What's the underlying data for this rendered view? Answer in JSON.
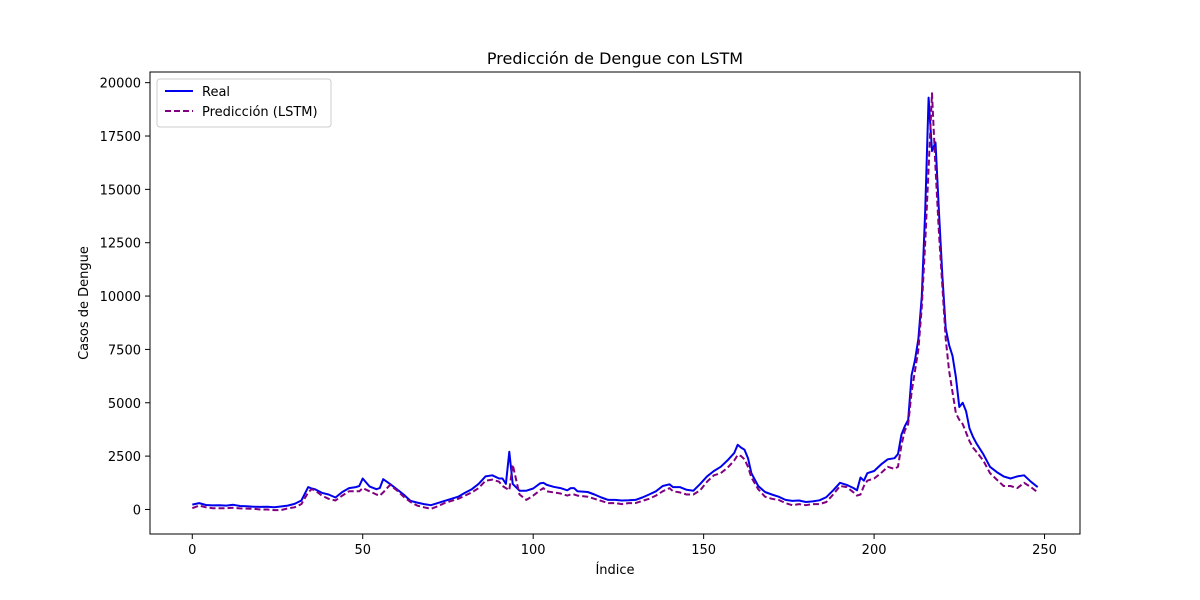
{
  "chart_data": {
    "type": "line",
    "title": "Predicción de Dengue con LSTM",
    "xlabel": "Índice",
    "ylabel": "Casos de Dengue",
    "xlim": [
      -12.4,
      260.4
    ],
    "ylim": [
      -1150,
      20500
    ],
    "xticks": [
      0,
      50,
      100,
      150,
      200,
      250
    ],
    "yticks": [
      0,
      2500,
      5000,
      7500,
      10000,
      12500,
      15000,
      17500,
      20000
    ],
    "grid": false,
    "legend_position": "top-left",
    "series": [
      {
        "name": "Real",
        "color": "#0000ee",
        "style": "solid",
        "points": [
          [
            0,
            230
          ],
          [
            2,
            300
          ],
          [
            4,
            210
          ],
          [
            6,
            190
          ],
          [
            8,
            200
          ],
          [
            10,
            180
          ],
          [
            12,
            220
          ],
          [
            14,
            160
          ],
          [
            16,
            150
          ],
          [
            18,
            130
          ],
          [
            20,
            120
          ],
          [
            22,
            130
          ],
          [
            24,
            100
          ],
          [
            26,
            140
          ],
          [
            28,
            180
          ],
          [
            30,
            260
          ],
          [
            32,
            420
          ],
          [
            34,
            1050
          ],
          [
            35,
            980
          ],
          [
            36,
            950
          ],
          [
            38,
            780
          ],
          [
            40,
            700
          ],
          [
            42,
            560
          ],
          [
            44,
            820
          ],
          [
            46,
            1000
          ],
          [
            48,
            1050
          ],
          [
            49,
            1100
          ],
          [
            50,
            1450
          ],
          [
            52,
            1080
          ],
          [
            54,
            950
          ],
          [
            55,
            1000
          ],
          [
            56,
            1420
          ],
          [
            58,
            1200
          ],
          [
            60,
            950
          ],
          [
            62,
            700
          ],
          [
            64,
            400
          ],
          [
            66,
            320
          ],
          [
            68,
            250
          ],
          [
            70,
            200
          ],
          [
            72,
            300
          ],
          [
            74,
            400
          ],
          [
            76,
            500
          ],
          [
            78,
            600
          ],
          [
            80,
            780
          ],
          [
            82,
            950
          ],
          [
            84,
            1200
          ],
          [
            86,
            1550
          ],
          [
            88,
            1600
          ],
          [
            90,
            1450
          ],
          [
            91,
            1450
          ],
          [
            92,
            1200
          ],
          [
            93,
            2700
          ],
          [
            94,
            1200
          ],
          [
            96,
            880
          ],
          [
            98,
            880
          ],
          [
            100,
            980
          ],
          [
            102,
            1220
          ],
          [
            103,
            1250
          ],
          [
            104,
            1150
          ],
          [
            106,
            1060
          ],
          [
            108,
            1000
          ],
          [
            110,
            900
          ],
          [
            111,
            1000
          ],
          [
            112,
            1000
          ],
          [
            113,
            850
          ],
          [
            116,
            820
          ],
          [
            118,
            700
          ],
          [
            120,
            560
          ],
          [
            122,
            450
          ],
          [
            124,
            450
          ],
          [
            126,
            420
          ],
          [
            128,
            430
          ],
          [
            130,
            450
          ],
          [
            132,
            560
          ],
          [
            134,
            700
          ],
          [
            136,
            850
          ],
          [
            138,
            1100
          ],
          [
            140,
            1180
          ],
          [
            141,
            1050
          ],
          [
            143,
            1050
          ],
          [
            145,
            920
          ],
          [
            147,
            880
          ],
          [
            149,
            1200
          ],
          [
            151,
            1550
          ],
          [
            153,
            1800
          ],
          [
            155,
            2000
          ],
          [
            157,
            2300
          ],
          [
            159,
            2650
          ],
          [
            160,
            3030
          ],
          [
            161,
            2900
          ],
          [
            162,
            2800
          ],
          [
            163,
            2400
          ],
          [
            164,
            1700
          ],
          [
            166,
            1100
          ],
          [
            168,
            820
          ],
          [
            170,
            700
          ],
          [
            172,
            600
          ],
          [
            174,
            450
          ],
          [
            176,
            400
          ],
          [
            178,
            420
          ],
          [
            180,
            350
          ],
          [
            182,
            380
          ],
          [
            184,
            430
          ],
          [
            186,
            580
          ],
          [
            188,
            900
          ],
          [
            190,
            1250
          ],
          [
            192,
            1150
          ],
          [
            194,
            1000
          ],
          [
            195,
            900
          ],
          [
            196,
            1500
          ],
          [
            197,
            1350
          ],
          [
            198,
            1700
          ],
          [
            200,
            1800
          ],
          [
            202,
            2100
          ],
          [
            204,
            2350
          ],
          [
            206,
            2400
          ],
          [
            207,
            2600
          ],
          [
            208,
            3500
          ],
          [
            209,
            3900
          ],
          [
            210,
            4200
          ],
          [
            211,
            6300
          ],
          [
            212,
            7000
          ],
          [
            213,
            8000
          ],
          [
            214,
            10000
          ],
          [
            215,
            14000
          ],
          [
            216,
            19300
          ],
          [
            217,
            16800
          ],
          [
            218,
            17200
          ],
          [
            219,
            14000
          ],
          [
            220,
            11000
          ],
          [
            221,
            8500
          ],
          [
            222,
            7700
          ],
          [
            223,
            7200
          ],
          [
            224,
            6200
          ],
          [
            225,
            4800
          ],
          [
            226,
            5000
          ],
          [
            227,
            4600
          ],
          [
            228,
            3800
          ],
          [
            229,
            3400
          ],
          [
            230,
            3100
          ],
          [
            232,
            2600
          ],
          [
            234,
            2000
          ],
          [
            236,
            1750
          ],
          [
            238,
            1550
          ],
          [
            240,
            1450
          ],
          [
            242,
            1550
          ],
          [
            244,
            1600
          ],
          [
            246,
            1300
          ],
          [
            248,
            1050
          ]
        ]
      },
      {
        "name": "Predicción (LSTM)",
        "color": "#800080",
        "style": "dashed",
        "points": [
          [
            0,
            60
          ],
          [
            2,
            180
          ],
          [
            4,
            100
          ],
          [
            6,
            60
          ],
          [
            8,
            60
          ],
          [
            10,
            60
          ],
          [
            12,
            80
          ],
          [
            14,
            50
          ],
          [
            16,
            40
          ],
          [
            18,
            30
          ],
          [
            20,
            0
          ],
          [
            22,
            0
          ],
          [
            24,
            -30
          ],
          [
            26,
            -30
          ],
          [
            28,
            50
          ],
          [
            30,
            100
          ],
          [
            32,
            250
          ],
          [
            34,
            800
          ],
          [
            35,
            950
          ],
          [
            36,
            900
          ],
          [
            38,
            650
          ],
          [
            40,
            500
          ],
          [
            42,
            420
          ],
          [
            44,
            650
          ],
          [
            46,
            850
          ],
          [
            48,
            850
          ],
          [
            49,
            850
          ],
          [
            50,
            1000
          ],
          [
            52,
            850
          ],
          [
            54,
            700
          ],
          [
            55,
            650
          ],
          [
            56,
            800
          ],
          [
            58,
            1150
          ],
          [
            60,
            900
          ],
          [
            62,
            600
          ],
          [
            64,
            350
          ],
          [
            66,
            180
          ],
          [
            68,
            100
          ],
          [
            70,
            30
          ],
          [
            72,
            150
          ],
          [
            74,
            300
          ],
          [
            76,
            400
          ],
          [
            78,
            500
          ],
          [
            80,
            650
          ],
          [
            82,
            800
          ],
          [
            84,
            1000
          ],
          [
            86,
            1350
          ],
          [
            88,
            1400
          ],
          [
            90,
            1300
          ],
          [
            91,
            1100
          ],
          [
            92,
            1000
          ],
          [
            93,
            900
          ],
          [
            94,
            2100
          ],
          [
            96,
            700
          ],
          [
            98,
            450
          ],
          [
            100,
            650
          ],
          [
            102,
            900
          ],
          [
            103,
            1000
          ],
          [
            104,
            850
          ],
          [
            106,
            800
          ],
          [
            108,
            750
          ],
          [
            110,
            650
          ],
          [
            111,
            700
          ],
          [
            112,
            700
          ],
          [
            113,
            650
          ],
          [
            116,
            600
          ],
          [
            118,
            500
          ],
          [
            120,
            400
          ],
          [
            122,
            300
          ],
          [
            124,
            300
          ],
          [
            126,
            250
          ],
          [
            128,
            300
          ],
          [
            130,
            300
          ],
          [
            132,
            400
          ],
          [
            134,
            500
          ],
          [
            136,
            650
          ],
          [
            138,
            850
          ],
          [
            140,
            1000
          ],
          [
            141,
            850
          ],
          [
            143,
            800
          ],
          [
            145,
            700
          ],
          [
            147,
            700
          ],
          [
            149,
            900
          ],
          [
            151,
            1300
          ],
          [
            153,
            1600
          ],
          [
            155,
            1700
          ],
          [
            157,
            1950
          ],
          [
            159,
            2300
          ],
          [
            160,
            2550
          ],
          [
            161,
            2500
          ],
          [
            162,
            2350
          ],
          [
            163,
            2000
          ],
          [
            164,
            1500
          ],
          [
            166,
            950
          ],
          [
            168,
            600
          ],
          [
            170,
            500
          ],
          [
            172,
            450
          ],
          [
            174,
            300
          ],
          [
            176,
            200
          ],
          [
            178,
            250
          ],
          [
            180,
            200
          ],
          [
            182,
            250
          ],
          [
            184,
            250
          ],
          [
            186,
            350
          ],
          [
            188,
            700
          ],
          [
            190,
            1100
          ],
          [
            192,
            1050
          ],
          [
            194,
            800
          ],
          [
            195,
            650
          ],
          [
            196,
            700
          ],
          [
            197,
            1100
          ],
          [
            198,
            1350
          ],
          [
            200,
            1450
          ],
          [
            202,
            1700
          ],
          [
            204,
            2000
          ],
          [
            206,
            1900
          ],
          [
            207,
            2000
          ],
          [
            208,
            3000
          ],
          [
            209,
            3700
          ],
          [
            210,
            4000
          ],
          [
            211,
            5500
          ],
          [
            212,
            6500
          ],
          [
            213,
            7500
          ],
          [
            214,
            9500
          ],
          [
            215,
            12500
          ],
          [
            216,
            16000
          ],
          [
            217,
            19500
          ],
          [
            218,
            16000
          ],
          [
            219,
            13000
          ],
          [
            220,
            10500
          ],
          [
            221,
            8000
          ],
          [
            222,
            6500
          ],
          [
            223,
            5500
          ],
          [
            224,
            4500
          ],
          [
            225,
            4200
          ],
          [
            226,
            4000
          ],
          [
            227,
            3600
          ],
          [
            228,
            3200
          ],
          [
            229,
            2900
          ],
          [
            230,
            2700
          ],
          [
            232,
            2300
          ],
          [
            234,
            1700
          ],
          [
            236,
            1400
          ],
          [
            238,
            1100
          ],
          [
            240,
            1100
          ],
          [
            242,
            1000
          ],
          [
            244,
            1250
          ],
          [
            246,
            1050
          ],
          [
            248,
            800
          ]
        ]
      }
    ]
  }
}
